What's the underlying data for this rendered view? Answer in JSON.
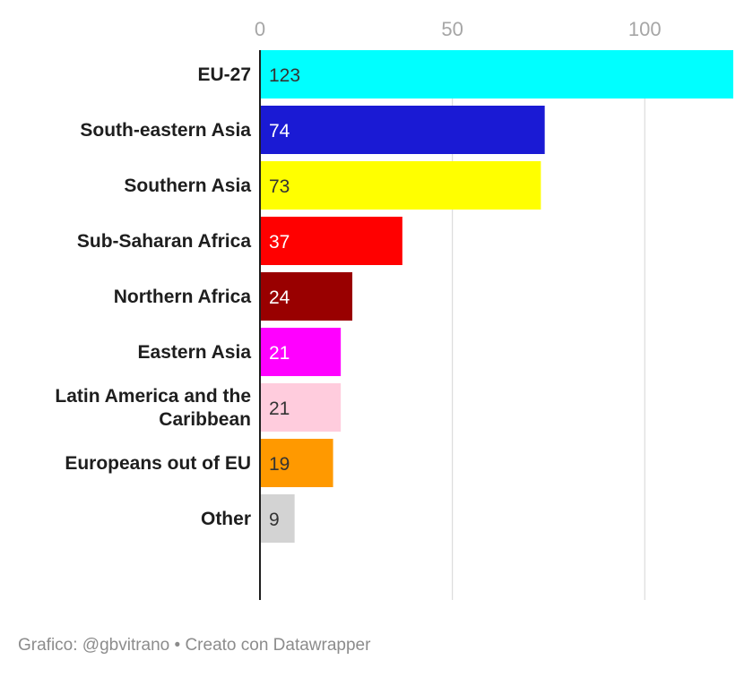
{
  "chart_data": {
    "type": "bar",
    "orientation": "horizontal",
    "categories": [
      "EU-27",
      "South-eastern Asia",
      "Southern Asia",
      "Sub-Saharan Africa",
      "Northern Africa",
      "Eastern Asia",
      "Latin America and the Caribbean",
      "Europeans out of EU",
      "Other"
    ],
    "values": [
      123,
      74,
      73,
      37,
      24,
      21,
      21,
      19,
      9
    ],
    "colors": [
      "#00ffff",
      "#1a1ad4",
      "#ffff00",
      "#ff0000",
      "#990000",
      "#ff00ff",
      "#ffccdd",
      "#ff9900",
      "#d3d3d3"
    ],
    "value_label_colors": [
      "#333333",
      "#ffffff",
      "#333333",
      "#ffffff",
      "#ffffff",
      "#ffffff",
      "#333333",
      "#333333",
      "#333333"
    ],
    "x_ticks": [
      0,
      50,
      100
    ],
    "xlim": [
      0,
      123
    ],
    "grid": true,
    "title": "",
    "xlabel": "",
    "ylabel": ""
  },
  "footer": {
    "text": "Grafico: @gbvitrano • Creato con Datawrapper"
  }
}
